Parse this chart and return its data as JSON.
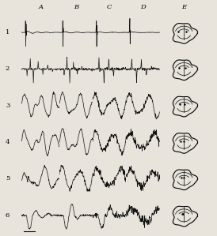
{
  "rows": 6,
  "cols": 5,
  "col_labels": [
    "A",
    "B",
    "C",
    "D",
    "E"
  ],
  "row_labels": [
    "1",
    "2",
    "3",
    "4",
    "5",
    "6"
  ],
  "bg_color": "#f0ece4",
  "line_color": "#1a1a1a",
  "grid_color": "#555555",
  "title_fontsize": 7,
  "label_fontsize": 6,
  "fig_width": 2.74,
  "fig_height": 2.99
}
